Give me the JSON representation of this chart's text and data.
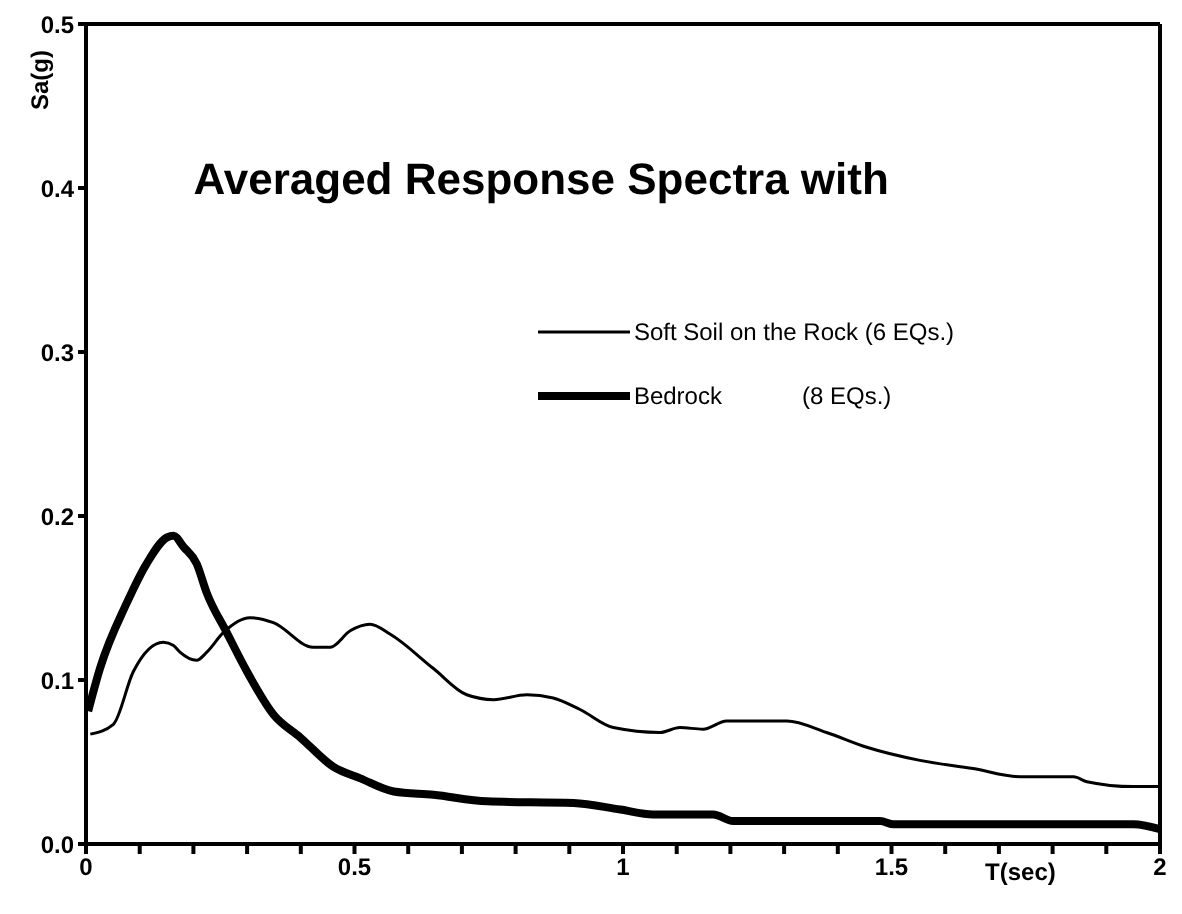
{
  "chart_data": {
    "type": "line",
    "title": "Averaged Response Spectra with",
    "xlabel": "T(sec)",
    "ylabel": "Sa(g)",
    "xlim": [
      0,
      2
    ],
    "ylim": [
      0,
      0.5
    ],
    "xticks": [
      0,
      {
        "value": 0.1,
        "label": null
      },
      {
        "value": 0.2,
        "label": null
      },
      {
        "value": 0.3,
        "label": null
      },
      {
        "value": 0.4,
        "label": null
      },
      0.5,
      {
        "value": 0.6,
        "label": null
      },
      {
        "value": 0.7,
        "label": null
      },
      {
        "value": 0.8,
        "label": null
      },
      {
        "value": 0.9,
        "label": null
      },
      1,
      {
        "value": 1.1,
        "label": null
      },
      {
        "value": 1.2,
        "label": null
      },
      {
        "value": 1.3,
        "label": null
      },
      {
        "value": 1.4,
        "label": null
      },
      1.5,
      {
        "value": 1.6,
        "label": null
      },
      {
        "value": 1.7,
        "label": null
      },
      {
        "value": 1.8,
        "label": null
      },
      {
        "value": 1.9,
        "label": null
      },
      2
    ],
    "yticks": [
      {
        "value": 0,
        "label": "0.0"
      },
      0.1,
      0.2,
      0.3,
      0.4,
      0.5
    ],
    "legend": "top right",
    "marker": "none",
    "line_style": "solid",
    "series": [
      {
        "name": "Soft Soil on the Rock (6 EQs.)",
        "color": "#000000",
        "x": [
          0.008,
          0.051,
          0.088,
          0.144,
          0.163,
          0.175,
          0.206,
          0.225,
          0.256,
          0.305,
          0.349,
          0.423,
          0.455,
          0.492,
          0.529,
          0.566,
          0.647,
          0.709,
          0.759,
          0.821,
          0.87,
          0.92,
          0.982,
          1.069,
          1.106,
          1.149,
          1.193,
          1.305,
          1.379,
          1.454,
          1.553,
          1.652,
          1.739,
          1.839,
          1.864,
          1.95,
          2.0
        ],
        "values": [
          0.067,
          0.073,
          0.105,
          0.123,
          0.121,
          0.117,
          0.112,
          0.117,
          0.129,
          0.138,
          0.135,
          0.12,
          0.12,
          0.13,
          0.134,
          0.128,
          0.107,
          0.091,
          0.088,
          0.091,
          0.089,
          0.082,
          0.071,
          0.068,
          0.071,
          0.07,
          0.075,
          0.075,
          0.068,
          0.059,
          0.051,
          0.046,
          0.041,
          0.041,
          0.038,
          0.035,
          0.035
        ]
      },
      {
        "name": "Bedrock            (8 EQs.)",
        "color": "#000000",
        "x": [
          0.004,
          0.026,
          0.076,
          0.113,
          0.151,
          0.163,
          0.182,
          0.206,
          0.225,
          0.262,
          0.3,
          0.349,
          0.399,
          0.461,
          0.511,
          0.573,
          0.647,
          0.747,
          0.908,
          0.995,
          1.056,
          1.168,
          1.205,
          1.479,
          1.504,
          1.951,
          2.0
        ],
        "values": [
          0.081,
          0.107,
          0.147,
          0.171,
          0.187,
          0.188,
          0.181,
          0.171,
          0.153,
          0.129,
          0.105,
          0.079,
          0.065,
          0.047,
          0.04,
          0.032,
          0.03,
          0.026,
          0.025,
          0.021,
          0.018,
          0.018,
          0.014,
          0.014,
          0.012,
          0.012,
          0.009
        ]
      }
    ]
  }
}
